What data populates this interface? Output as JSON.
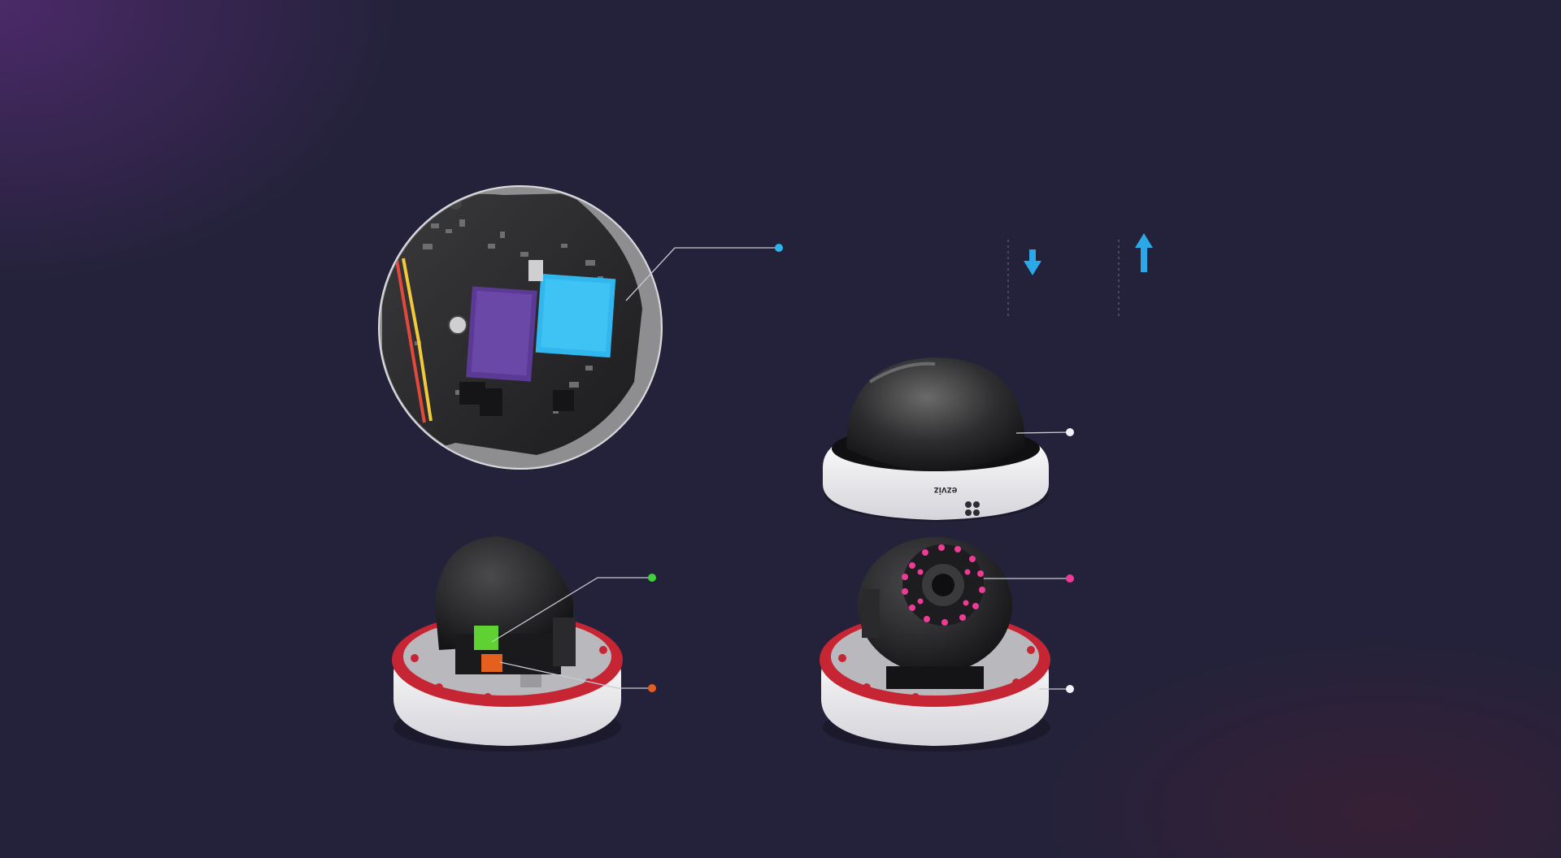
{
  "brand": {
    "logo_text": "ezviz"
  },
  "colors": {
    "background": "#24223a",
    "purple_glow": "#582c78",
    "chip_blue": "#31b7ee",
    "chip_purple": "#5b3a96",
    "callout_blue": "#2fb3ef",
    "callout_white": "#f2f2f6",
    "callout_green": "#3fd13c",
    "callout_orange": "#e35e1f",
    "callout_pink": "#ee3b96",
    "red_gasket": "#d6263a",
    "arrow_down": "#2aa8e8",
    "arrow_up": "#2aa8e8"
  },
  "icons": {
    "down": "arrow-down-icon",
    "up": "arrow-up-icon"
  },
  "callouts": [
    {
      "id": "chip",
      "color": "callout_blue"
    },
    {
      "id": "dome-cover",
      "color": "callout_white"
    },
    {
      "id": "green-connector",
      "color": "callout_green"
    },
    {
      "id": "orange-connector",
      "color": "callout_orange"
    },
    {
      "id": "ir-leds",
      "color": "callout_pink"
    },
    {
      "id": "base",
      "color": "callout_white"
    }
  ]
}
